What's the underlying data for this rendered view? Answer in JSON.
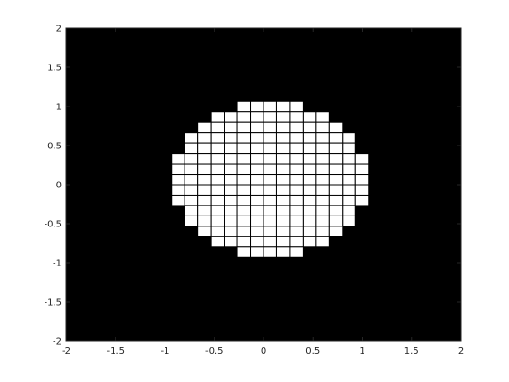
{
  "chart_data": {
    "type": "heatmap",
    "title": "",
    "xlabel": "",
    "ylabel": "",
    "xlim": [
      -2,
      2
    ],
    "ylim": [
      -2,
      2
    ],
    "x_ticks": [
      -2,
      -1.5,
      -1,
      -0.5,
      0,
      0.5,
      1,
      1.5,
      2
    ],
    "y_ticks": [
      -2,
      -1.5,
      -1,
      -0.5,
      0,
      0.5,
      1,
      1.5,
      2
    ],
    "x_tick_labels": [
      "-2",
      "-1.5",
      "-1",
      "-0.5",
      "0",
      "0.5",
      "1",
      "1.5",
      "2"
    ],
    "y_tick_labels": [
      "-2",
      "-1.5",
      "-1",
      "-0.5",
      "0",
      "0.5",
      "1",
      "1.5",
      "2"
    ],
    "grid": false,
    "background_color": "#000000",
    "cell_fill_color": "#ffffff",
    "cell_edge_color": "#000000",
    "cell_size": 0.13333,
    "filled_rows": [
      {
        "y": [
          0.9333,
          1.0667
        ],
        "x": [
          -0.2667,
          0.4
        ]
      },
      {
        "y": [
          0.8,
          0.9333
        ],
        "x": [
          -0.5333,
          0.6667
        ]
      },
      {
        "y": [
          0.6667,
          0.8
        ],
        "x": [
          -0.6667,
          0.8
        ]
      },
      {
        "y": [
          0.5333,
          0.6667
        ],
        "x": [
          -0.8,
          0.9333
        ]
      },
      {
        "y": [
          0.4,
          0.5333
        ],
        "x": [
          -0.8,
          0.9333
        ]
      },
      {
        "y": [
          0.2667,
          0.4
        ],
        "x": [
          -0.9333,
          1.0667
        ]
      },
      {
        "y": [
          0.1333,
          0.2667
        ],
        "x": [
          -0.9333,
          1.0667
        ]
      },
      {
        "y": [
          0.0,
          0.1333
        ],
        "x": [
          -0.9333,
          1.0667
        ]
      },
      {
        "y": [
          -0.1333,
          0.0
        ],
        "x": [
          -0.9333,
          1.0667
        ]
      },
      {
        "y": [
          -0.2667,
          -0.1333
        ],
        "x": [
          -0.9333,
          1.0667
        ]
      },
      {
        "y": [
          -0.4,
          -0.2667
        ],
        "x": [
          -0.8,
          0.9333
        ]
      },
      {
        "y": [
          -0.5333,
          -0.4
        ],
        "x": [
          -0.8,
          0.9333
        ]
      },
      {
        "y": [
          -0.6667,
          -0.5333
        ],
        "x": [
          -0.6667,
          0.8
        ]
      },
      {
        "y": [
          -0.8,
          -0.6667
        ],
        "x": [
          -0.5333,
          0.6667
        ]
      },
      {
        "y": [
          -0.9333,
          -0.8
        ],
        "x": [
          -0.2667,
          0.4
        ]
      }
    ]
  }
}
